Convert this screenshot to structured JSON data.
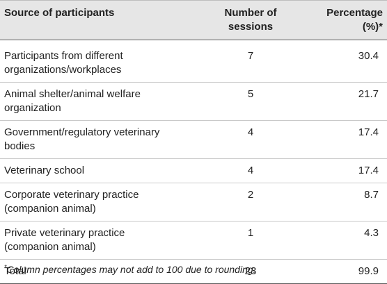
{
  "table": {
    "headers": {
      "source": "Source of participants",
      "sessions_line1": "Number of",
      "sessions_line2": "sessions",
      "pct_line1": "Percentage",
      "pct_line2": "(%)*"
    },
    "rows": [
      {
        "source_line1": "Participants from different",
        "source_line2": "organizations/workplaces",
        "sessions": "7",
        "pct": "30.4"
      },
      {
        "source_line1": "Animal shelter/animal welfare",
        "source_line2": "organization",
        "sessions": "5",
        "pct": "21.7"
      },
      {
        "source_line1": "Government/regulatory veterinary",
        "source_line2": "bodies",
        "sessions": "4",
        "pct": "17.4"
      },
      {
        "source_line1": "Veterinary school",
        "source_line2": "",
        "sessions": "4",
        "pct": "17.4"
      },
      {
        "source_line1": "Corporate veterinary practice",
        "source_line2": "(companion animal)",
        "sessions": "2",
        "pct": "8.7"
      },
      {
        "source_line1": "Private veterinary practice",
        "source_line2": "(companion animal)",
        "sessions": "1",
        "pct": "4.3"
      },
      {
        "source_line1": "Total",
        "source_line2": "",
        "sessions": "23",
        "pct": "99.9"
      }
    ]
  },
  "footnote": {
    "marker": "*",
    "text": "Column percentages may not add to 100 due to rounding."
  }
}
